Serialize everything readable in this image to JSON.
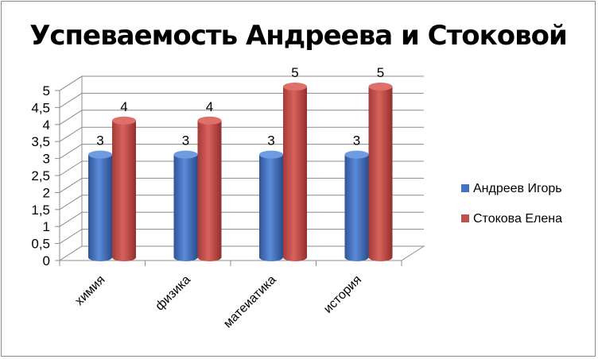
{
  "chart_data": {
    "type": "bar",
    "title": "Успеваемость Андреева и Стоковой",
    "categories": [
      "химия",
      "физика",
      "матеиатика",
      "история"
    ],
    "series": [
      {
        "name": "Андреев Игорь",
        "values": [
          3,
          3,
          3,
          3
        ],
        "color": "#4472c4"
      },
      {
        "name": "Стокова Елена",
        "values": [
          4,
          4,
          5,
          5
        ],
        "color": "#c0504d"
      }
    ],
    "yticks": [
      "0",
      "0,5",
      "1",
      "1,5",
      "2",
      "2,5",
      "3",
      "3,5",
      "4",
      "4,5",
      "5"
    ],
    "ylim": [
      0,
      5
    ],
    "grid": true,
    "legend_position": "right",
    "data_labels": true
  }
}
